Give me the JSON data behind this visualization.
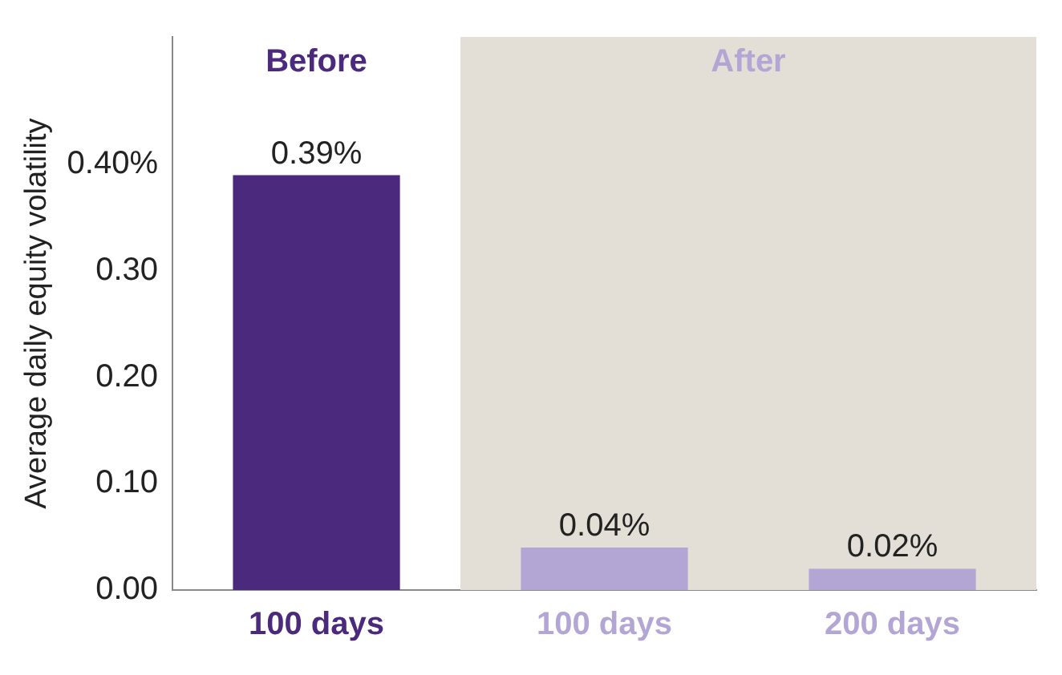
{
  "chart_data": {
    "type": "bar",
    "ylabel": "Average daily equity volatility",
    "categories": [
      "100 days",
      "100 days",
      "200 days"
    ],
    "values": [
      0.39,
      0.04,
      0.02
    ],
    "colors": [
      "#4b2a7e",
      "#b3a6d4",
      "#b3a6d4"
    ],
    "value_labels": [
      "0.39%",
      "0.04%",
      "0.02%"
    ],
    "annotations": [
      "Before"
    ],
    "bands": [
      {
        "axis": "x",
        "from": "100 days",
        "to": "200 days",
        "label": "After",
        "color": "#e4dfd6"
      }
    ],
    "ylim": [
      0,
      0.52
    ],
    "yticks": [
      {
        "value": 0,
        "label": "0.00"
      },
      {
        "value": 0.1,
        "label": "0.10"
      },
      {
        "value": 0.2,
        "label": "0.20"
      },
      {
        "value": 0.3,
        "label": "0.30"
      },
      {
        "value": 0.4,
        "label": "0.40%"
      }
    ],
    "grid": false,
    "legend": false
  }
}
